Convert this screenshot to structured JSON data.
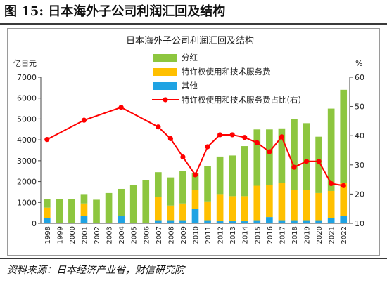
{
  "figure": {
    "label": "图 15:  日本海外子公司利润汇回及结构",
    "source": "资料来源：日本经济产业省，财信研究院"
  },
  "chart_data": {
    "type": "bar",
    "stacked": true,
    "title": "日本海外子公司利润汇回及结构",
    "ylabel_left": "亿日元",
    "ylabel_right": "%",
    "ylim_left": [
      0,
      7000
    ],
    "ylim_right": [
      10,
      60
    ],
    "yticks_left": [
      "0",
      "1000",
      "2000",
      "3000",
      "4000",
      "5000",
      "6000",
      "7000"
    ],
    "yticks_right": [
      "10",
      "20",
      "30",
      "40",
      "50",
      "60"
    ],
    "categories": [
      "1998",
      "1999",
      "2000",
      "2001",
      "2002",
      "2003",
      "2004",
      "2005",
      "2006",
      "2007",
      "2008",
      "2009",
      "2010",
      "2011",
      "2012",
      "2013",
      "2014",
      "2015",
      "2016",
      "2017",
      "2018",
      "2019",
      "2020",
      "2021",
      "2022"
    ],
    "series": [
      {
        "name": "分红",
        "kind": "bar",
        "axis": "left",
        "color": "#8dc63f",
        "values": [
          400,
          1150,
          1150,
          450,
          1130,
          1450,
          1300,
          1850,
          2080,
          1200,
          1350,
          1550,
          800,
          1700,
          1800,
          1950,
          2400,
          2700,
          2650,
          2600,
          3400,
          3200,
          2700,
          3950,
          4450
        ]
      },
      {
        "name": "特许权使用和技术服务费",
        "kind": "bar",
        "axis": "left",
        "color": "#ffc000",
        "values": [
          500,
          0,
          0,
          600,
          0,
          0,
          0,
          0,
          0,
          1100,
          700,
          800,
          900,
          900,
          1300,
          1200,
          1200,
          1650,
          1550,
          1800,
          1450,
          1450,
          1300,
          1300,
          1600
        ]
      },
      {
        "name": "其他",
        "kind": "bar",
        "axis": "left",
        "color": "#1fa3e3",
        "values": [
          250,
          0,
          0,
          350,
          0,
          0,
          350,
          0,
          0,
          150,
          150,
          150,
          700,
          150,
          100,
          100,
          100,
          150,
          300,
          150,
          150,
          150,
          150,
          250,
          350
        ]
      },
      {
        "name": "特许权使用和技术服务费占比(右)",
        "kind": "line",
        "axis": "right",
        "color": "#ff0000",
        "x": [
          "1998",
          "2001",
          "2004",
          "2007",
          "2008",
          "2009",
          "2010",
          "2011",
          "2012",
          "2013",
          "2014",
          "2015",
          "2016",
          "2017",
          "2018",
          "2019",
          "2020",
          "2021",
          "2022"
        ],
        "values": [
          38.7,
          45.3,
          49.7,
          43.0,
          39.0,
          32.7,
          26.6,
          36.2,
          40.3,
          40.3,
          39.4,
          37.6,
          34.5,
          39.6,
          29.2,
          31.2,
          31.2,
          23.6,
          22.9
        ]
      }
    ],
    "legend_position": "top-right"
  }
}
